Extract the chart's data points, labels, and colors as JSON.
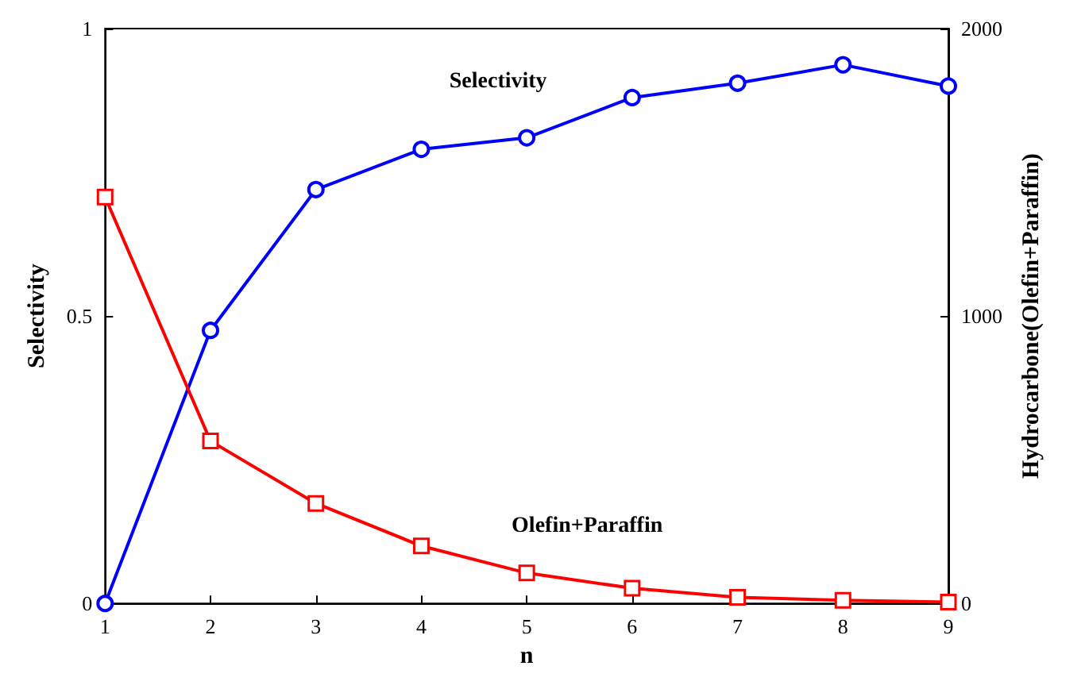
{
  "chart_data": {
    "type": "line",
    "xlabel": "n",
    "ylabel": "Selectivity",
    "y2label": "Hydrocarbone(Olefin+Paraffin)",
    "x": [
      1,
      2,
      3,
      4,
      5,
      6,
      7,
      8,
      9
    ],
    "series": [
      {
        "name": "Selectivity",
        "color": "#0000ff",
        "marker": "circle",
        "values": [
          0,
          0.475,
          0.72,
          0.79,
          0.81,
          0.88,
          0.905,
          0.937,
          0.9
        ]
      },
      {
        "name": "Olefin+Paraffin",
        "color": "#ff0000",
        "marker": "square",
        "axis": "y2",
        "values": [
          1414,
          565,
          348,
          200,
          106,
          53,
          21,
          11,
          5
        ]
      }
    ],
    "xlim": [
      1,
      9
    ],
    "xticks": [
      1,
      2,
      3,
      4,
      5,
      6,
      7,
      8,
      9
    ],
    "ylim": [
      0,
      1
    ],
    "yticks": [
      0,
      0.5,
      1
    ],
    "y2lim": [
      0,
      2000
    ],
    "y2ticks": [
      0,
      1000,
      2000
    ]
  }
}
